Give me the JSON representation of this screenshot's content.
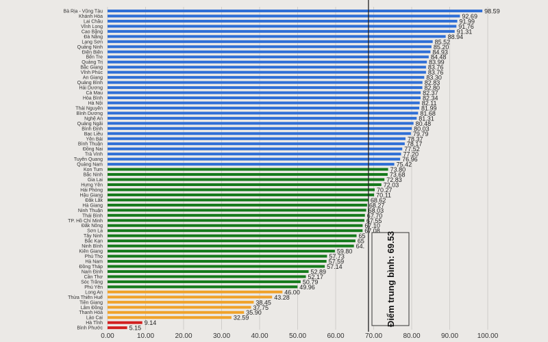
{
  "chart_data": {
    "type": "bar",
    "orientation": "horizontal",
    "title": "",
    "xlabel": "",
    "ylabel": "",
    "xlim": [
      0,
      100
    ],
    "xticks": [
      "0.00",
      "10.00",
      "20.00",
      "30.00",
      "40.00",
      "50.00",
      "60.00",
      "70.00",
      "80.00",
      "90.00",
      "100.00"
    ],
    "grid": true,
    "mean": {
      "value": 69.53,
      "label": "Điểm trung bình: 69.53"
    },
    "colors": {
      "blue": "#2f6fd6",
      "green": "#167a1c",
      "orange": "#f0a22a",
      "red": "#d21f1f"
    },
    "bars": [
      {
        "name": "Bà Rịa - Vũng Tàu",
        "value": 98.59,
        "group": "blue"
      },
      {
        "name": "Khánh Hòa",
        "value": 92.69,
        "group": "blue"
      },
      {
        "name": "Lai Châu",
        "value": 91.99,
        "group": "blue"
      },
      {
        "name": "Vĩnh Long",
        "value": 91.76,
        "group": "blue"
      },
      {
        "name": "Cao Bằng",
        "value": 91.31,
        "group": "blue"
      },
      {
        "name": "Đà Nẵng",
        "value": 88.94,
        "group": "blue"
      },
      {
        "name": "Lạng Sơn",
        "value": 85.52,
        "group": "blue"
      },
      {
        "name": "Quảng Ninh",
        "value": 85.2,
        "group": "blue"
      },
      {
        "name": "Điện Biên",
        "value": 84.93,
        "group": "blue"
      },
      {
        "name": "Bến Tre",
        "value": 84.48,
        "group": "blue"
      },
      {
        "name": "Quảng Trị",
        "value": 83.99,
        "group": "blue"
      },
      {
        "name": "Bắc Giang",
        "value": 83.76,
        "group": "blue"
      },
      {
        "name": "Vĩnh Phúc",
        "value": 83.76,
        "group": "blue"
      },
      {
        "name": "An Giang",
        "value": 83.3,
        "group": "blue"
      },
      {
        "name": "Quảng Bình",
        "value": 82.83,
        "group": "blue"
      },
      {
        "name": "Hải Dương",
        "value": 82.8,
        "group": "blue"
      },
      {
        "name": "Cà Mau",
        "value": 82.37,
        "group": "blue"
      },
      {
        "name": "Hòa Bình",
        "value": 82.34,
        "group": "blue"
      },
      {
        "name": "Hà Nội",
        "value": 82.11,
        "group": "blue"
      },
      {
        "name": "Thái Nguyên",
        "value": 81.99,
        "group": "blue"
      },
      {
        "name": "Bình Dương",
        "value": 81.68,
        "group": "blue"
      },
      {
        "name": "Nghệ An",
        "value": 81.31,
        "group": "blue"
      },
      {
        "name": "Quảng Ngãi",
        "value": 80.48,
        "group": "blue"
      },
      {
        "name": "Bình Định",
        "value": 80.03,
        "group": "blue"
      },
      {
        "name": "Bạc Liêu",
        "value": 79.79,
        "group": "blue"
      },
      {
        "name": "Yên Bái",
        "value": 78.37,
        "group": "blue"
      },
      {
        "name": "Bình Thuận",
        "value": 78.17,
        "group": "blue"
      },
      {
        "name": "Đồng Nai",
        "value": 77.52,
        "group": "blue"
      },
      {
        "name": "Trà Vinh",
        "value": 77.2,
        "group": "blue"
      },
      {
        "name": "Tuyên Quang",
        "value": 76.96,
        "group": "blue"
      },
      {
        "name": "Quảng Nam",
        "value": 75.42,
        "group": "blue"
      },
      {
        "name": "Kon Tum",
        "value": 73.8,
        "group": "green"
      },
      {
        "name": "Bắc Ninh",
        "value": 73.68,
        "group": "green"
      },
      {
        "name": "Gia Lai",
        "value": 72.83,
        "group": "green"
      },
      {
        "name": "Hưng Yên",
        "value": 72.03,
        "group": "green"
      },
      {
        "name": "Hải Phòng",
        "value": 70.27,
        "group": "green"
      },
      {
        "name": "Hậu Giang",
        "value": 70.11,
        "group": "green"
      },
      {
        "name": "Đắk Lắk",
        "value": 68.62,
        "group": "green"
      },
      {
        "name": "Hà Giang",
        "value": 68.27,
        "group": "green"
      },
      {
        "name": "Ninh Thuận",
        "value": 68.03,
        "group": "green"
      },
      {
        "name": "Thái Bình",
        "value": 67.7,
        "group": "green"
      },
      {
        "name": "TP. Hồ Chí Minh",
        "value": 67.55,
        "group": "green"
      },
      {
        "name": "Đắk Nông",
        "value": 67.1,
        "group": "green"
      },
      {
        "name": "Sơn La",
        "value": 67.08,
        "group": "green"
      },
      {
        "name": "Tây Ninh",
        "value": 65.5,
        "group": "green",
        "label": "65"
      },
      {
        "name": "Bắc Kạn",
        "value": 65.2,
        "group": "green",
        "label": "65"
      },
      {
        "name": "Ninh Bình",
        "value": 64.8,
        "group": "green",
        "label": "64."
      },
      {
        "name": "Kiên Giang",
        "value": 59.8,
        "group": "green"
      },
      {
        "name": "Phú Thọ",
        "value": 57.73,
        "group": "green"
      },
      {
        "name": "Hà Nam",
        "value": 57.59,
        "group": "green"
      },
      {
        "name": "Đồng Tháp",
        "value": 57.14,
        "group": "green"
      },
      {
        "name": "Nam Định",
        "value": 52.89,
        "group": "green"
      },
      {
        "name": "Cần Thơ",
        "value": 52.17,
        "group": "green"
      },
      {
        "name": "Sóc Trăng",
        "value": 50.79,
        "group": "green"
      },
      {
        "name": "Phú Yên",
        "value": 49.96,
        "group": "green"
      },
      {
        "name": "Long An",
        "value": 46.0,
        "group": "orange"
      },
      {
        "name": "Thừa Thiên Huế",
        "value": 43.28,
        "group": "orange"
      },
      {
        "name": "Tiền Giang",
        "value": 38.45,
        "group": "orange"
      },
      {
        "name": "Lâm Đồng",
        "value": 37.75,
        "group": "orange"
      },
      {
        "name": "Thanh Hóa",
        "value": 35.9,
        "group": "orange"
      },
      {
        "name": "Lào Cai",
        "value": 32.59,
        "group": "orange"
      },
      {
        "name": "Hà Tĩnh",
        "value": 9.14,
        "group": "red"
      },
      {
        "name": "Bình Phước",
        "value": 5.15,
        "group": "red"
      }
    ]
  }
}
